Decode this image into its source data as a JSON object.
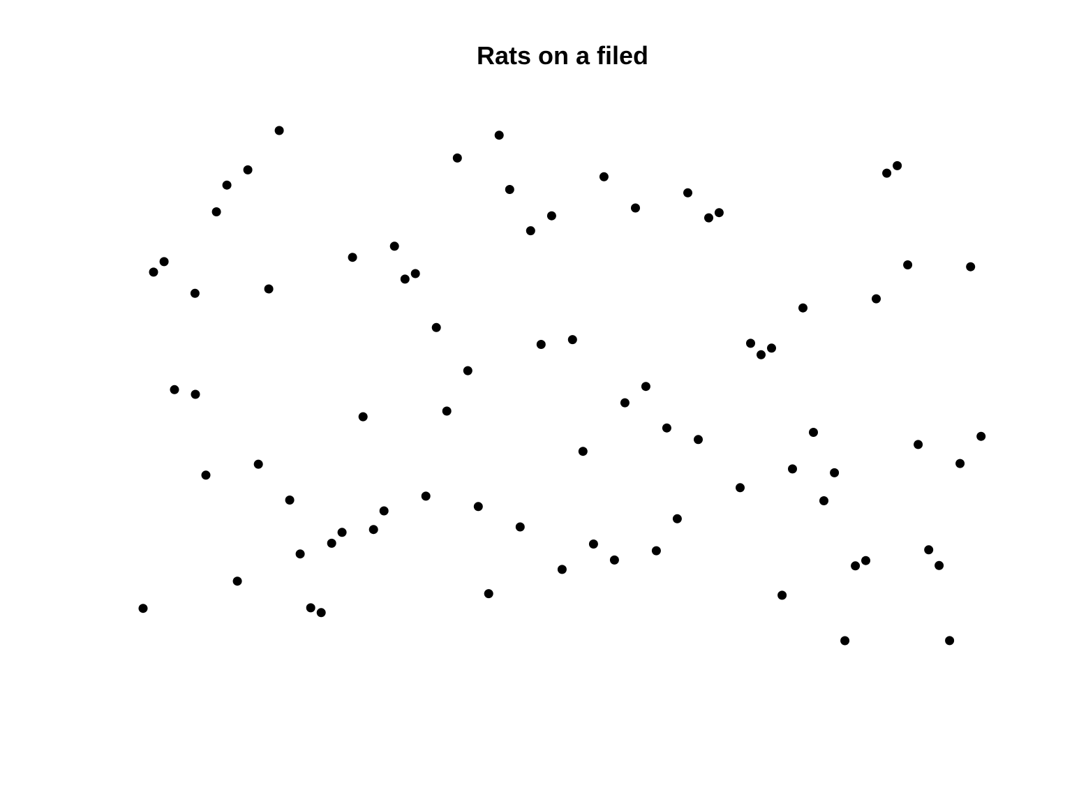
{
  "chart_data": {
    "type": "scatter",
    "title": "Rats on a filed",
    "xlabel": "",
    "ylabel": "",
    "axes_visible": false,
    "grid": false,
    "xlim": [
      0,
      1
    ],
    "ylim": [
      0,
      1
    ],
    "marker_color": "#000000",
    "points": [
      {
        "x": 0.0,
        "y": 0.0634
      },
      {
        "x": 0.0125,
        "y": 0.7225
      },
      {
        "x": 0.025,
        "y": 0.7429
      },
      {
        "x": 0.0374,
        "y": 0.492
      },
      {
        "x": 0.0619,
        "y": 0.6809
      },
      {
        "x": 0.0624,
        "y": 0.4829
      },
      {
        "x": 0.0749,
        "y": 0.3245
      },
      {
        "x": 0.0874,
        "y": 0.8406
      },
      {
        "x": 0.0999,
        "y": 0.893
      },
      {
        "x": 0.1124,
        "y": 0.1167
      },
      {
        "x": 0.1249,
        "y": 0.9229
      },
      {
        "x": 0.1374,
        "y": 0.3459
      },
      {
        "x": 0.1498,
        "y": 0.6895
      },
      {
        "x": 0.1623,
        "y": 1.0
      },
      {
        "x": 0.1748,
        "y": 0.2757
      },
      {
        "x": 0.1873,
        "y": 0.1701
      },
      {
        "x": 0.1998,
        "y": 0.0645
      },
      {
        "x": 0.2123,
        "y": 0.055
      },
      {
        "x": 0.2248,
        "y": 0.191
      },
      {
        "x": 0.2372,
        "y": 0.2123
      },
      {
        "x": 0.2497,
        "y": 0.7514
      },
      {
        "x": 0.2622,
        "y": 0.439
      },
      {
        "x": 0.2747,
        "y": 0.2179
      },
      {
        "x": 0.2872,
        "y": 0.2544
      },
      {
        "x": 0.2997,
        "y": 0.7732
      },
      {
        "x": 0.3122,
        "y": 0.7088
      },
      {
        "x": 0.3246,
        "y": 0.7195
      },
      {
        "x": 0.3371,
        "y": 0.2833
      },
      {
        "x": 0.3496,
        "y": 0.6138
      },
      {
        "x": 0.3621,
        "y": 0.45
      },
      {
        "x": 0.3746,
        "y": 0.9461
      },
      {
        "x": 0.3871,
        "y": 0.5293
      },
      {
        "x": 0.3996,
        "y": 0.2629
      },
      {
        "x": 0.412,
        "y": 0.0922
      },
      {
        "x": 0.4245,
        "y": 0.9909
      },
      {
        "x": 0.437,
        "y": 0.8844
      },
      {
        "x": 0.4495,
        "y": 0.223
      },
      {
        "x": 0.462,
        "y": 0.8035
      },
      {
        "x": 0.4745,
        "y": 0.5807
      },
      {
        "x": 0.487,
        "y": 0.8328
      },
      {
        "x": 0.4995,
        "y": 0.1397
      },
      {
        "x": 0.5119,
        "y": 0.5901
      },
      {
        "x": 0.5244,
        "y": 0.3712
      },
      {
        "x": 0.5369,
        "y": 0.1895
      },
      {
        "x": 0.5494,
        "y": 0.9093
      },
      {
        "x": 0.5619,
        "y": 0.1581
      },
      {
        "x": 0.5744,
        "y": 0.4664
      },
      {
        "x": 0.5869,
        "y": 0.8482
      },
      {
        "x": 0.5993,
        "y": 0.4983
      },
      {
        "x": 0.6118,
        "y": 0.1764
      },
      {
        "x": 0.6243,
        "y": 0.4169
      },
      {
        "x": 0.6368,
        "y": 0.239
      },
      {
        "x": 0.6493,
        "y": 0.8779
      },
      {
        "x": 0.6618,
        "y": 0.3942
      },
      {
        "x": 0.6743,
        "y": 0.8288
      },
      {
        "x": 0.6867,
        "y": 0.839
      },
      {
        "x": 0.7117,
        "y": 0.2999
      },
      {
        "x": 0.7242,
        "y": 0.5829
      },
      {
        "x": 0.7367,
        "y": 0.5605
      },
      {
        "x": 0.7492,
        "y": 0.5734
      },
      {
        "x": 0.7617,
        "y": 0.0891
      },
      {
        "x": 0.7741,
        "y": 0.3367
      },
      {
        "x": 0.7866,
        "y": 0.6523
      },
      {
        "x": 0.7991,
        "y": 0.4083
      },
      {
        "x": 0.8116,
        "y": 0.2743
      },
      {
        "x": 0.8241,
        "y": 0.3292
      },
      {
        "x": 0.8366,
        "y": 0.0
      },
      {
        "x": 0.8491,
        "y": 0.1467
      },
      {
        "x": 0.8615,
        "y": 0.157
      },
      {
        "x": 0.874,
        "y": 0.6702
      },
      {
        "x": 0.8865,
        "y": 0.9164
      },
      {
        "x": 0.899,
        "y": 0.931
      },
      {
        "x": 0.9115,
        "y": 0.7366
      },
      {
        "x": 0.924,
        "y": 0.3846
      },
      {
        "x": 0.9365,
        "y": 0.1781
      },
      {
        "x": 0.9489,
        "y": 0.1474
      },
      {
        "x": 0.9614,
        "y": 0.0002
      },
      {
        "x": 0.9739,
        "y": 0.3474
      },
      {
        "x": 0.9864,
        "y": 0.733
      },
      {
        "x": 0.9989,
        "y": 0.4005
      }
    ]
  }
}
